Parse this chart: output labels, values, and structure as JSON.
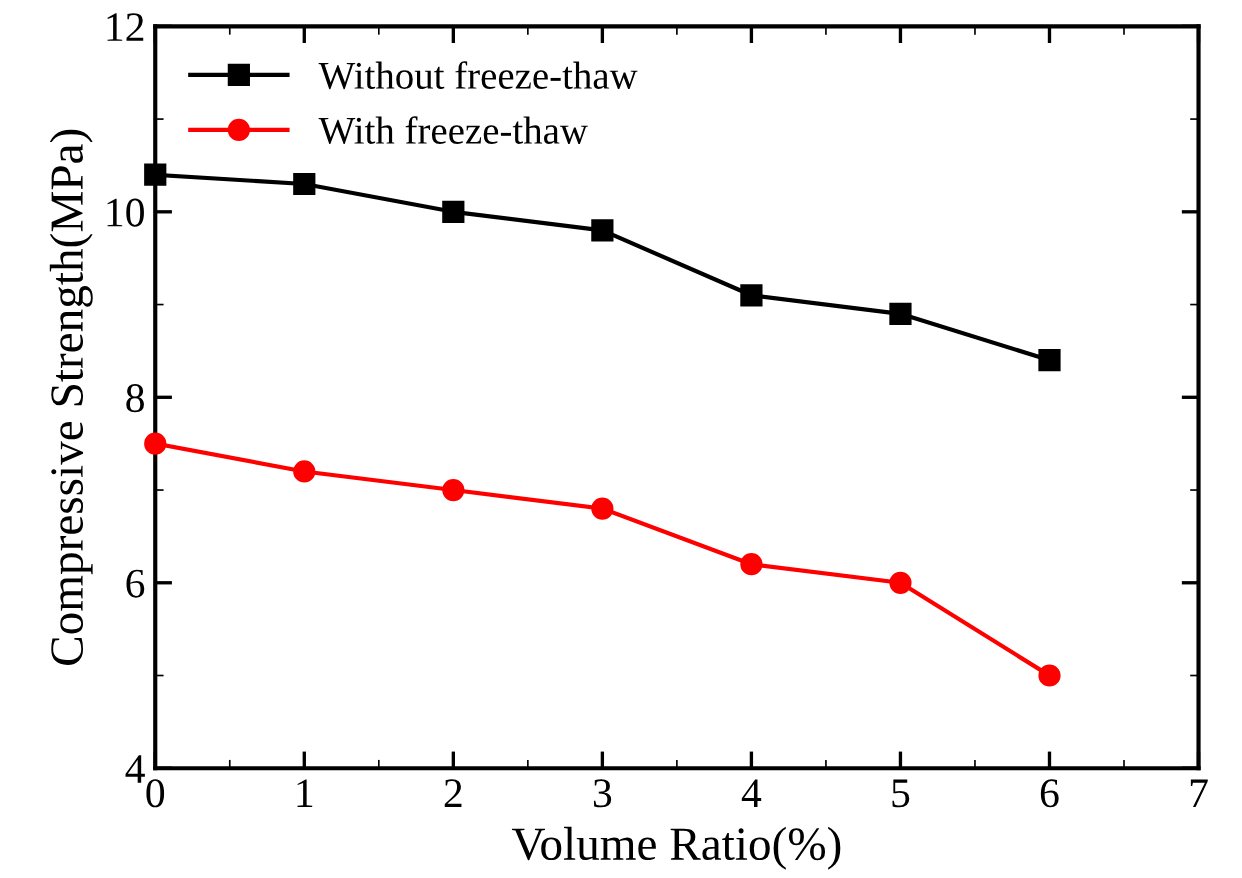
{
  "chart_data": {
    "type": "line",
    "xlabel": "Volume Ratio(%)",
    "ylabel": "Compressive Strength(MPa)",
    "x": [
      0,
      1,
      2,
      3,
      4,
      5,
      6
    ],
    "series": [
      {
        "name": "Without freeze-thaw",
        "color": "#000000",
        "marker": "square",
        "values": [
          10.4,
          10.3,
          10.0,
          9.8,
          9.1,
          8.9,
          8.4
        ]
      },
      {
        "name": "With freeze-thaw",
        "color": "#ff0000",
        "marker": "circle",
        "values": [
          7.5,
          7.2,
          7.0,
          6.8,
          6.2,
          6.0,
          5.0
        ]
      }
    ],
    "xlim": [
      0,
      7
    ],
    "xticks": [
      0,
      1,
      2,
      3,
      4,
      5,
      6,
      7
    ],
    "ylim": [
      4,
      12
    ],
    "yticks": [
      4,
      6,
      8,
      10,
      12
    ],
    "grid": false,
    "legend": "top left",
    "line_style": "solid"
  }
}
